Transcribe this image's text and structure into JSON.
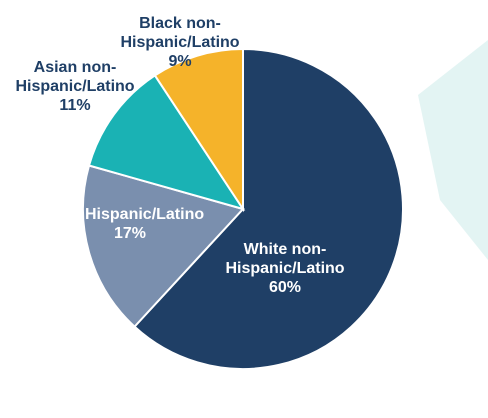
{
  "chart_data": {
    "type": "pie",
    "categories": [
      "White non-Hispanic/Latino",
      "Hispanic/Latino",
      "Asian non-Hispanic/Latino",
      "Black non-Hispanic/Latino"
    ],
    "values": [
      60,
      17,
      11,
      9
    ],
    "value_labels": [
      "60%",
      "17%",
      "11%",
      "9%"
    ],
    "colors": [
      "#1f3f66",
      "#7a8fae",
      "#1ab2b4",
      "#f5b32a"
    ]
  }
}
